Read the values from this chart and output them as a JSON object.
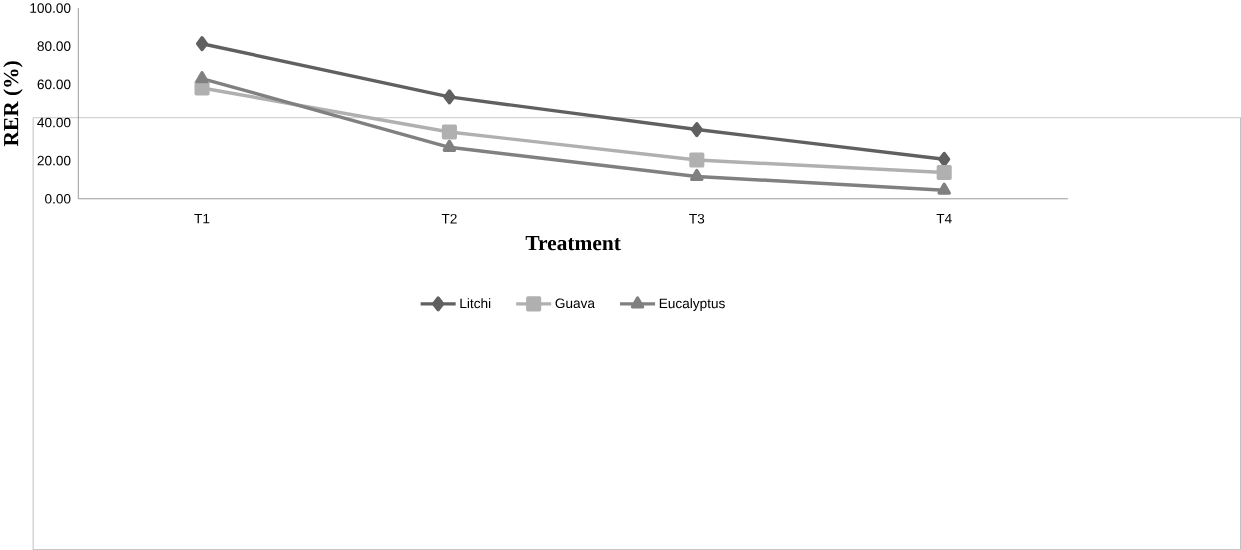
{
  "chart_data": {
    "type": "line",
    "xlabel": "Treatment",
    "ylabel": "RER (%)",
    "categories": [
      "T1",
      "T2",
      "T3",
      "T4"
    ],
    "series": [
      {
        "name": "Litchi",
        "color": "#606060",
        "marker": "diamond",
        "values": [
          81.3,
          53.4,
          36.3,
          20.7
        ]
      },
      {
        "name": "Guava",
        "color": "#b0b0b0",
        "marker": "square",
        "values": [
          58.1,
          35.0,
          20.3,
          13.8
        ]
      },
      {
        "name": "Eucalyptus",
        "color": "#808080",
        "marker": "triangle",
        "values": [
          63.0,
          27.0,
          11.7,
          4.5
        ]
      }
    ],
    "ylim": [
      0,
      100
    ],
    "yticks": [
      {
        "value": 0,
        "label": "0.00"
      },
      {
        "value": 20,
        "label": "20.00"
      },
      {
        "value": 40,
        "label": "40.00"
      },
      {
        "value": 60,
        "label": "60.00"
      },
      {
        "value": 80,
        "label": "80.00"
      },
      {
        "value": 100,
        "label": "100.00"
      }
    ],
    "grid": false,
    "legend": "bottom",
    "line_style": "solid"
  }
}
